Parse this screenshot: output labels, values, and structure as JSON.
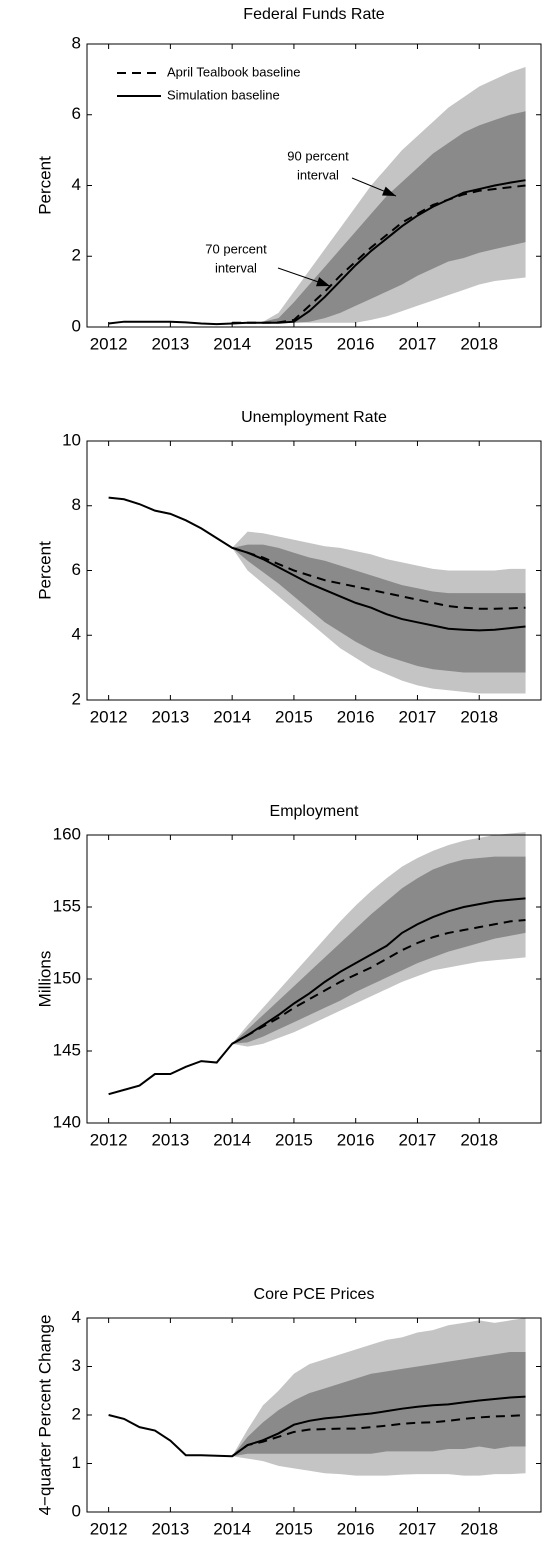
{
  "chart_data": [
    {
      "type": "line",
      "title": "Federal Funds Rate",
      "ylabel": "Percent",
      "x": [
        2012,
        2012.25,
        2012.5,
        2012.75,
        2013,
        2013.25,
        2013.5,
        2013.75,
        2014,
        2014.25,
        2014.5,
        2014.75,
        2015,
        2015.25,
        2015.5,
        2015.75,
        2016,
        2016.25,
        2016.5,
        2016.75,
        2017,
        2017.25,
        2017.5,
        2017.75,
        2018,
        2018.25,
        2018.5,
        2018.75
      ],
      "xlim": [
        2011.65,
        2019
      ],
      "xticks": [
        2012,
        2013,
        2014,
        2015,
        2016,
        2017,
        2018
      ],
      "ylim": [
        0,
        8
      ],
      "yticks": [
        0,
        2,
        4,
        6,
        8
      ],
      "legend": "upper left",
      "bands": [
        {
          "color": "#c4c4c4",
          "upper": [
            null,
            null,
            null,
            null,
            null,
            null,
            null,
            null,
            null,
            null,
            0.15,
            0.4,
            1.0,
            1.6,
            2.2,
            2.8,
            3.4,
            4.0,
            4.5,
            5.0,
            5.4,
            5.8,
            6.2,
            6.5,
            6.8,
            7.0,
            7.2,
            7.35
          ],
          "lower": [
            null,
            null,
            null,
            null,
            null,
            null,
            null,
            null,
            null,
            null,
            0.12,
            0.12,
            0.12,
            0.12,
            0.12,
            0.12,
            0.12,
            0.2,
            0.3,
            0.45,
            0.6,
            0.75,
            0.9,
            1.05,
            1.2,
            1.3,
            1.35,
            1.4
          ]
        },
        {
          "color": "#8a8a8a",
          "upper": [
            null,
            null,
            null,
            null,
            null,
            null,
            null,
            null,
            null,
            null,
            0.15,
            0.25,
            0.7,
            1.2,
            1.7,
            2.2,
            2.7,
            3.2,
            3.7,
            4.1,
            4.5,
            4.9,
            5.2,
            5.5,
            5.7,
            5.85,
            6.0,
            6.1
          ],
          "lower": [
            null,
            null,
            null,
            null,
            null,
            null,
            null,
            null,
            null,
            null,
            0.12,
            0.12,
            0.12,
            0.15,
            0.25,
            0.4,
            0.6,
            0.8,
            1.0,
            1.2,
            1.45,
            1.65,
            1.85,
            1.95,
            2.1,
            2.2,
            2.3,
            2.4
          ]
        }
      ],
      "series": [
        {
          "name": "April Tealbook baseline",
          "color": "#000000",
          "dash": true,
          "values": [
            null,
            null,
            null,
            null,
            null,
            null,
            null,
            null,
            0.12,
            0.12,
            0.12,
            0.13,
            0.2,
            0.6,
            1.0,
            1.45,
            1.85,
            2.25,
            2.6,
            2.95,
            3.2,
            3.45,
            3.6,
            3.75,
            3.85,
            3.9,
            3.95,
            4.0
          ]
        },
        {
          "name": "Simulation baseline",
          "color": "#000000",
          "dash": false,
          "values": [
            0.1,
            0.15,
            0.15,
            0.15,
            0.15,
            0.13,
            0.1,
            0.08,
            0.1,
            0.12,
            0.12,
            0.12,
            0.15,
            0.45,
            0.85,
            1.3,
            1.75,
            2.15,
            2.5,
            2.85,
            3.15,
            3.4,
            3.6,
            3.8,
            3.9,
            4.0,
            4.08,
            4.15
          ]
        }
      ],
      "annotations": [
        {
          "lines": [
            "90 percent",
            "interval"
          ]
        },
        {
          "lines": [
            "70 percent",
            "interval"
          ]
        }
      ]
    },
    {
      "type": "line",
      "title": "Unemployment Rate",
      "ylabel": "Percent",
      "x": [
        2012,
        2012.25,
        2012.5,
        2012.75,
        2013,
        2013.25,
        2013.5,
        2013.75,
        2014,
        2014.25,
        2014.5,
        2014.75,
        2015,
        2015.25,
        2015.5,
        2015.75,
        2016,
        2016.25,
        2016.5,
        2016.75,
        2017,
        2017.25,
        2017.5,
        2017.75,
        2018,
        2018.25,
        2018.5,
        2018.75
      ],
      "xlim": [
        2011.65,
        2019
      ],
      "xticks": [
        2012,
        2013,
        2014,
        2015,
        2016,
        2017,
        2018
      ],
      "ylim": [
        2,
        10
      ],
      "yticks": [
        2,
        4,
        6,
        8,
        10
      ],
      "bands": [
        {
          "color": "#c4c4c4",
          "upper": [
            null,
            null,
            null,
            null,
            null,
            null,
            null,
            null,
            6.7,
            7.2,
            7.15,
            7.05,
            6.95,
            6.85,
            6.75,
            6.7,
            6.6,
            6.5,
            6.35,
            6.25,
            6.15,
            6.05,
            6.0,
            6.0,
            6.0,
            6.0,
            6.05,
            6.05
          ],
          "lower": [
            null,
            null,
            null,
            null,
            null,
            null,
            null,
            null,
            6.7,
            6.0,
            5.6,
            5.2,
            4.8,
            4.4,
            4.0,
            3.6,
            3.3,
            3.0,
            2.8,
            2.6,
            2.45,
            2.35,
            2.3,
            2.25,
            2.2,
            2.2,
            2.2,
            2.2
          ]
        },
        {
          "color": "#8a8a8a",
          "upper": [
            null,
            null,
            null,
            null,
            null,
            null,
            null,
            null,
            6.7,
            6.8,
            6.8,
            6.7,
            6.55,
            6.4,
            6.3,
            6.15,
            6.0,
            5.85,
            5.7,
            5.55,
            5.45,
            5.35,
            5.3,
            5.3,
            5.3,
            5.3,
            5.3,
            5.3
          ],
          "lower": [
            null,
            null,
            null,
            null,
            null,
            null,
            null,
            null,
            6.7,
            6.3,
            5.95,
            5.6,
            5.2,
            4.8,
            4.4,
            4.1,
            3.8,
            3.55,
            3.35,
            3.2,
            3.05,
            2.95,
            2.9,
            2.85,
            2.85,
            2.85,
            2.85,
            2.85
          ]
        }
      ],
      "series": [
        {
          "color": "#000000",
          "dash": true,
          "values": [
            null,
            null,
            null,
            null,
            null,
            null,
            null,
            null,
            6.7,
            6.55,
            6.4,
            6.2,
            6.0,
            5.85,
            5.7,
            5.6,
            5.5,
            5.4,
            5.3,
            5.2,
            5.1,
            5.0,
            4.9,
            4.85,
            4.82,
            4.82,
            4.83,
            4.85
          ]
        },
        {
          "color": "#000000",
          "dash": false,
          "values": [
            8.25,
            8.2,
            8.05,
            7.85,
            7.75,
            7.55,
            7.3,
            7.0,
            6.7,
            6.55,
            6.35,
            6.1,
            5.85,
            5.6,
            5.4,
            5.2,
            5.0,
            4.85,
            4.65,
            4.5,
            4.4,
            4.3,
            4.2,
            4.17,
            4.15,
            4.17,
            4.22,
            4.27
          ]
        }
      ]
    },
    {
      "type": "line",
      "title": "Employment",
      "ylabel": "Millions",
      "x": [
        2012,
        2012.25,
        2012.5,
        2012.75,
        2013,
        2013.25,
        2013.5,
        2013.75,
        2014,
        2014.25,
        2014.5,
        2014.75,
        2015,
        2015.25,
        2015.5,
        2015.75,
        2016,
        2016.25,
        2016.5,
        2016.75,
        2017,
        2017.25,
        2017.5,
        2017.75,
        2018,
        2018.25,
        2018.5,
        2018.75
      ],
      "xlim": [
        2011.65,
        2019
      ],
      "xticks": [
        2012,
        2013,
        2014,
        2015,
        2016,
        2017,
        2018
      ],
      "ylim": [
        140,
        160
      ],
      "yticks": [
        140,
        145,
        150,
        155,
        160
      ],
      "bands": [
        {
          "color": "#c4c4c4",
          "upper": [
            null,
            null,
            null,
            null,
            null,
            null,
            null,
            null,
            145.5,
            146.8,
            148.0,
            149.2,
            150.4,
            151.6,
            152.8,
            154.0,
            155.1,
            156.1,
            157.0,
            157.8,
            158.4,
            158.9,
            159.3,
            159.6,
            159.8,
            160.0,
            160.1,
            160.2
          ],
          "lower": [
            null,
            null,
            null,
            null,
            null,
            null,
            null,
            null,
            145.5,
            145.3,
            145.5,
            145.9,
            146.3,
            146.8,
            147.3,
            147.8,
            148.3,
            148.8,
            149.3,
            149.8,
            150.2,
            150.6,
            150.8,
            151.0,
            151.2,
            151.3,
            151.4,
            151.5
          ]
        },
        {
          "color": "#8a8a8a",
          "upper": [
            null,
            null,
            null,
            null,
            null,
            null,
            null,
            null,
            145.5,
            146.5,
            147.5,
            148.5,
            149.5,
            150.5,
            151.5,
            152.5,
            153.5,
            154.5,
            155.4,
            156.3,
            157.0,
            157.6,
            158.0,
            158.3,
            158.4,
            158.5,
            158.5,
            158.5
          ],
          "lower": [
            null,
            null,
            null,
            null,
            null,
            null,
            null,
            null,
            145.5,
            145.6,
            146.0,
            146.5,
            147.0,
            147.5,
            148.0,
            148.5,
            149.1,
            149.6,
            150.1,
            150.6,
            151.1,
            151.5,
            151.9,
            152.2,
            152.5,
            152.8,
            153.0,
            153.2
          ]
        }
      ],
      "series": [
        {
          "color": "#000000",
          "dash": true,
          "values": [
            null,
            null,
            null,
            null,
            null,
            null,
            null,
            null,
            145.5,
            146.1,
            146.7,
            147.3,
            148.0,
            148.6,
            149.2,
            149.8,
            150.3,
            150.8,
            151.4,
            152.0,
            152.5,
            152.9,
            153.2,
            153.4,
            153.6,
            153.8,
            154.0,
            154.1
          ]
        },
        {
          "color": "#000000",
          "dash": false,
          "values": [
            142.0,
            142.3,
            142.6,
            143.4,
            143.4,
            143.9,
            144.3,
            144.2,
            145.5,
            146.1,
            146.8,
            147.5,
            148.3,
            149.0,
            149.8,
            150.5,
            151.1,
            151.7,
            152.3,
            153.2,
            153.8,
            154.3,
            154.7,
            155.0,
            155.2,
            155.4,
            155.5,
            155.6
          ]
        }
      ]
    },
    {
      "type": "line",
      "title": "Core PCE Prices",
      "ylabel": "4−quarter Percent Change",
      "x": [
        2012,
        2012.25,
        2012.5,
        2012.75,
        2013,
        2013.25,
        2013.5,
        2013.75,
        2014,
        2014.25,
        2014.5,
        2014.75,
        2015,
        2015.25,
        2015.5,
        2015.75,
        2016,
        2016.25,
        2016.5,
        2016.75,
        2017,
        2017.25,
        2017.5,
        2017.75,
        2018,
        2018.25,
        2018.5,
        2018.75
      ],
      "xlim": [
        2011.65,
        2019
      ],
      "xticks": [
        2012,
        2013,
        2014,
        2015,
        2016,
        2017,
        2018
      ],
      "ylim": [
        0,
        4
      ],
      "yticks": [
        0,
        1,
        2,
        3,
        4
      ],
      "bands": [
        {
          "color": "#c4c4c4",
          "upper": [
            null,
            null,
            null,
            null,
            null,
            null,
            null,
            null,
            1.15,
            1.7,
            2.2,
            2.5,
            2.85,
            3.05,
            3.15,
            3.25,
            3.35,
            3.45,
            3.55,
            3.6,
            3.7,
            3.75,
            3.85,
            3.9,
            3.95,
            3.9,
            3.95,
            4.0
          ],
          "lower": [
            null,
            null,
            null,
            null,
            null,
            null,
            null,
            null,
            1.15,
            1.1,
            1.05,
            0.95,
            0.9,
            0.85,
            0.8,
            0.78,
            0.75,
            0.75,
            0.75,
            0.77,
            0.78,
            0.78,
            0.78,
            0.75,
            0.75,
            0.78,
            0.78,
            0.8
          ]
        },
        {
          "color": "#8a8a8a",
          "upper": [
            null,
            null,
            null,
            null,
            null,
            null,
            null,
            null,
            1.15,
            1.55,
            1.85,
            2.1,
            2.3,
            2.45,
            2.55,
            2.65,
            2.75,
            2.85,
            2.9,
            2.95,
            3.0,
            3.05,
            3.1,
            3.15,
            3.2,
            3.25,
            3.3,
            3.3
          ],
          "lower": [
            null,
            null,
            null,
            null,
            null,
            null,
            null,
            null,
            1.15,
            1.2,
            1.2,
            1.2,
            1.2,
            1.2,
            1.2,
            1.2,
            1.2,
            1.2,
            1.25,
            1.25,
            1.25,
            1.25,
            1.3,
            1.3,
            1.35,
            1.3,
            1.35,
            1.35
          ]
        }
      ],
      "series": [
        {
          "color": "#000000",
          "dash": true,
          "values": [
            null,
            null,
            null,
            null,
            null,
            null,
            null,
            null,
            1.15,
            1.38,
            1.45,
            1.55,
            1.65,
            1.7,
            1.71,
            1.72,
            1.72,
            1.75,
            1.78,
            1.82,
            1.84,
            1.85,
            1.88,
            1.92,
            1.95,
            1.97,
            1.98,
            2.0
          ]
        },
        {
          "color": "#000000",
          "dash": false,
          "values": [
            2.0,
            1.92,
            1.75,
            1.68,
            1.47,
            1.17,
            1.17,
            1.16,
            1.15,
            1.38,
            1.48,
            1.62,
            1.8,
            1.88,
            1.93,
            1.96,
            2.0,
            2.03,
            2.08,
            2.13,
            2.17,
            2.2,
            2.22,
            2.26,
            2.3,
            2.33,
            2.36,
            2.38
          ]
        }
      ]
    }
  ]
}
